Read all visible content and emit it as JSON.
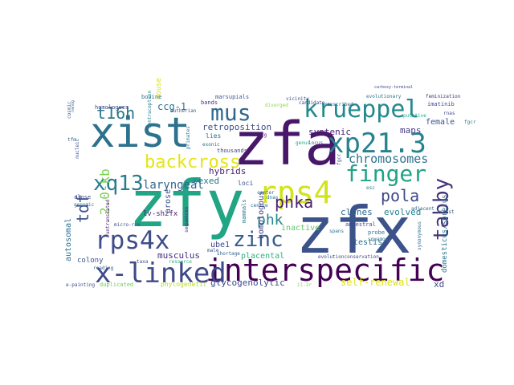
{
  "words": [
    {
      "text": "zfy",
      "color": "#21a585",
      "size": "large"
    },
    {
      "text": "zfx",
      "color": "#3b528b",
      "size": "large"
    },
    {
      "text": "zfa",
      "color": "#481769",
      "size": "large"
    },
    {
      "text": "xist",
      "color": "#2c718e",
      "size": "large"
    },
    {
      "text": "interspecific",
      "color": "#440154",
      "size": "large"
    },
    {
      "text": "x-linked",
      "color": "#3e4a89",
      "size": "large"
    },
    {
      "text": "xp21.3",
      "color": "#26828e",
      "size": "large"
    },
    {
      "text": "rps4",
      "color": "#d2e21b",
      "size": "large"
    },
    {
      "text": "rps4x",
      "color": "#3e4c8a",
      "size": "large"
    },
    {
      "text": "krueppel",
      "color": "#23898e",
      "size": "medium"
    },
    {
      "text": "finger",
      "color": "#20a386",
      "size": "medium"
    },
    {
      "text": "mus",
      "color": "#31688e",
      "size": "medium"
    },
    {
      "text": "zinc",
      "color": "#365c8d",
      "size": "medium"
    },
    {
      "text": "xq13",
      "color": "#287c8e",
      "size": "medium"
    },
    {
      "text": "tabby",
      "color": "#46337e",
      "size": "medium"
    },
    {
      "text": "backcross",
      "color": "#e5e419",
      "size": "medium"
    },
    {
      "text": "t16h",
      "color": "#2a788e",
      "size": "medium"
    },
    {
      "text": "tdf",
      "color": "#3b528b",
      "size": "medium"
    },
    {
      "text": "pola",
      "color": "#3e4989",
      "size": "medium"
    },
    {
      "text": "phka",
      "color": "#481f70",
      "size": "medium"
    },
    {
      "text": "phk",
      "color": "#24868e",
      "size": "medium"
    },
    {
      "text": "chromosomes",
      "color": "#2c728e",
      "size": "medium"
    },
    {
      "text": "2.0-kb",
      "color": "#7ad151",
      "size": "medium"
    },
    {
      "text": "laryngeal",
      "color": "#31688e",
      "size": "medium"
    },
    {
      "text": "self-renewal",
      "color": "#dde318",
      "size": "small"
    },
    {
      "text": "glycogenolytic",
      "color": "#3e4989",
      "size": "small"
    },
    {
      "text": "ccg-1",
      "color": "#2c728e",
      "size": "small"
    },
    {
      "text": "mouse",
      "color": "#d8e219",
      "size": "small"
    },
    {
      "text": "syntenic",
      "color": "#482173",
      "size": "small"
    },
    {
      "text": "maps",
      "color": "#443983",
      "size": "small"
    },
    {
      "text": "female",
      "color": "#3b528b",
      "size": "small"
    },
    {
      "text": "retroposition",
      "color": "#3b518b",
      "size": "small"
    },
    {
      "text": "hybrids",
      "color": "#482173",
      "size": "small"
    },
    {
      "text": "clones",
      "color": "#31688e",
      "size": "small"
    },
    {
      "text": "evolved",
      "color": "#25838e",
      "size": "small"
    },
    {
      "text": "dmd",
      "color": "#481b6d",
      "size": "small"
    },
    {
      "text": "sexed",
      "color": "#2a778e",
      "size": "small"
    },
    {
      "text": "lv-shzfx",
      "color": "#481b6d",
      "size": "small"
    },
    {
      "text": "musculus",
      "color": "#472c7a",
      "size": "small"
    },
    {
      "text": "ube1",
      "color": "#414487",
      "size": "small"
    },
    {
      "text": "testis",
      "color": "#2c718e",
      "size": "small"
    },
    {
      "text": "placental",
      "color": "#2db27d",
      "size": "small"
    },
    {
      "text": "xd",
      "color": "#3e4989",
      "size": "small"
    },
    {
      "text": "autosomal",
      "color": "#2c718e",
      "size": "small"
    },
    {
      "text": "colony",
      "color": "#3b528b",
      "size": "small"
    },
    {
      "text": "inactive",
      "color": "#5ec962",
      "size": "small"
    },
    {
      "text": "arose",
      "color": "#3b528b",
      "size": "small"
    },
    {
      "text": "homologous",
      "color": "#433e85",
      "size": "small"
    },
    {
      "text": "domesticus/spretus",
      "color": "#2a788e",
      "size": "small"
    },
    {
      "text": "duplicated",
      "color": "#6ccd5a",
      "size": "tiny"
    },
    {
      "text": "phylogenetic",
      "color": "#b5de2b",
      "size": "tiny"
    },
    {
      "text": "homologues",
      "color": "#3f4788",
      "size": "tiny"
    },
    {
      "text": "bovine",
      "color": "#2d708e",
      "size": "tiny"
    },
    {
      "text": "marsupials",
      "color": "#3b528b",
      "size": "tiny"
    },
    {
      "text": "vicinity",
      "color": "#3b528b",
      "size": "tiny"
    },
    {
      "text": "bands",
      "color": "#453882",
      "size": "tiny"
    },
    {
      "text": "diverged",
      "color": "#8fd744",
      "size": "tiny"
    },
    {
      "text": "candidate",
      "color": "#3e4a89",
      "size": "tiny"
    },
    {
      "text": "evolutionary",
      "color": "#2b758e",
      "size": "tiny"
    },
    {
      "text": "imatinib",
      "color": "#3a538b",
      "size": "tiny"
    },
    {
      "text": "feminization",
      "color": "#453781",
      "size": "tiny"
    },
    {
      "text": "carboxy-terminal",
      "color": "#3f4889",
      "size": "tiny"
    },
    {
      "text": "transcribed",
      "color": "#31688e",
      "size": "tiny"
    },
    {
      "text": "putative",
      "color": "#23a983",
      "size": "tiny"
    },
    {
      "text": "rnas",
      "color": "#3d4d8a",
      "size": "tiny"
    },
    {
      "text": "lies",
      "color": "#2c718e",
      "size": "tiny"
    },
    {
      "text": "exonic",
      "color": "#2e6f8e",
      "size": "tiny"
    },
    {
      "text": "il2rg",
      "color": "#482677",
      "size": "tiny"
    },
    {
      "text": "genus",
      "color": "#22a884",
      "size": "tiny"
    },
    {
      "text": "locus",
      "color": "#38588c",
      "size": "tiny"
    },
    {
      "text": "thousands",
      "color": "#414287",
      "size": "tiny"
    },
    {
      "text": "primates",
      "color": "#2a788e",
      "size": "tiny"
    },
    {
      "text": "eutherian",
      "color": "#32658e",
      "size": "tiny"
    },
    {
      "text": "contraception",
      "color": "#25858e",
      "size": "tiny"
    },
    {
      "text": "nucleic",
      "color": "#3b528b",
      "size": "tiny"
    },
    {
      "text": "fgcr",
      "color": "#2a778e",
      "size": "tiny"
    },
    {
      "text": "center",
      "color": "#31678e",
      "size": "tiny"
    },
    {
      "text": "close",
      "color": "#3f4889",
      "size": "tiny"
    },
    {
      "text": "genomic",
      "color": "#2a788e",
      "size": "tiny"
    },
    {
      "text": "micro-rna",
      "color": "#3e4c8a",
      "size": "tiny"
    },
    {
      "text": "ancestral",
      "color": "#3f4788",
      "size": "tiny"
    },
    {
      "text": "probe",
      "color": "#2d708e",
      "size": "tiny"
    },
    {
      "text": "squamous",
      "color": "#2e6e8e",
      "size": "tiny"
    },
    {
      "text": "adjacent",
      "color": "#31668e",
      "size": "tiny"
    },
    {
      "text": "arrest",
      "color": "#3b528b",
      "size": "tiny"
    },
    {
      "text": "synonymous",
      "color": "#2f6c8e",
      "size": "tiny"
    },
    {
      "text": "spans",
      "color": "#2c728e",
      "size": "tiny"
    },
    {
      "text": "evolutionconservation",
      "color": "#3e4a89",
      "size": "tiny"
    },
    {
      "text": "resource",
      "color": "#2db27d",
      "size": "tiny"
    },
    {
      "text": "male",
      "color": "#3b528b",
      "size": "tiny"
    },
    {
      "text": "shortage",
      "color": "#32648e",
      "size": "tiny"
    },
    {
      "text": "taxa",
      "color": "#3b528b",
      "size": "tiny"
    },
    {
      "text": "reading",
      "color": "#355f8d",
      "size": "tiny"
    },
    {
      "text": "e-painting",
      "color": "#3e4a89",
      "size": "tiny"
    },
    {
      "text": "il-2r",
      "color": "#7ad151",
      "size": "tiny"
    },
    {
      "text": "sequences",
      "color": "#482475",
      "size": "tiny"
    },
    {
      "text": "untranslated",
      "color": "#48186a",
      "size": "tiny"
    },
    {
      "text": "mammals",
      "color": "#2a778e",
      "size": "tiny"
    },
    {
      "text": "loci",
      "color": "#3a548c",
      "size": "tiny"
    },
    {
      "text": "centre",
      "color": "#33638d",
      "size": "tiny"
    },
    {
      "text": "dnas",
      "color": "#2d708e",
      "size": "tiny"
    },
    {
      "text": "esc",
      "color": "#2d708e",
      "size": "tiny"
    },
    {
      "text": "tfm",
      "color": "#31678e",
      "size": "tiny"
    },
    {
      "text": "nanog",
      "color": "#2f6c8e",
      "size": "tiny"
    },
    {
      "text": "cosmic",
      "color": "#3a548c",
      "size": "tiny"
    },
    {
      "text": "fgcr",
      "color": "#3b528b",
      "size": "tiny"
    }
  ]
}
